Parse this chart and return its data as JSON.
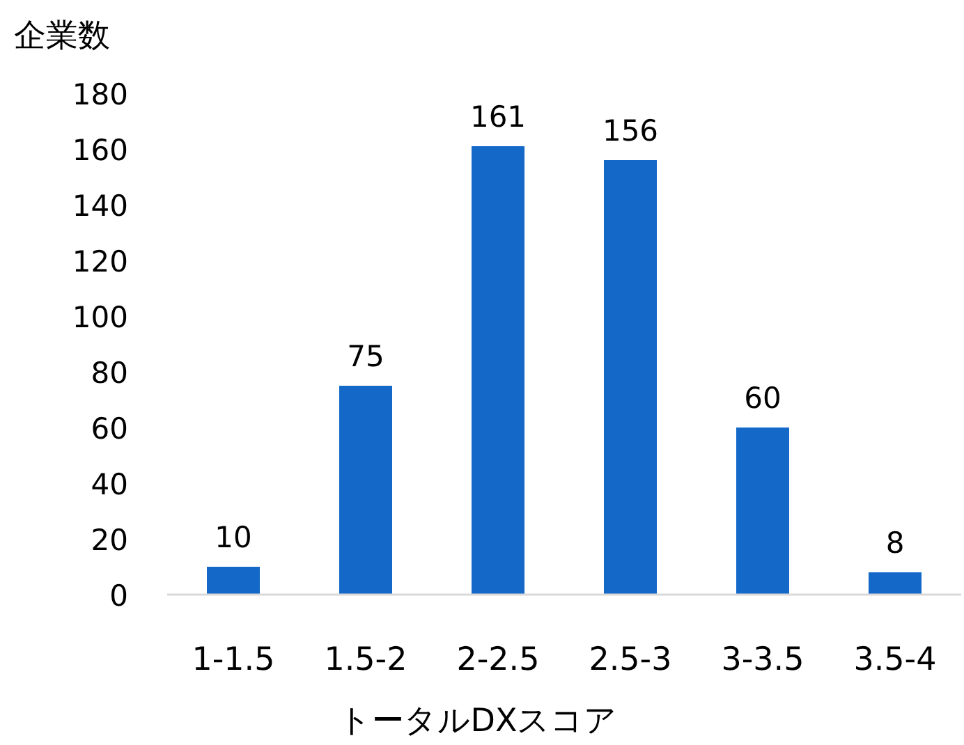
{
  "chart_data": {
    "type": "bar",
    "ylabel": "企業数",
    "xlabel": "トータルDXスコア",
    "categories": [
      "1-1.5",
      "1.5-2",
      "2-2.5",
      "2.5-3",
      "3-3.5",
      "3.5-4"
    ],
    "values": [
      10,
      75,
      161,
      156,
      60,
      8
    ],
    "color": "#1468c8",
    "ylim": [
      0,
      180
    ],
    "yticks": [
      0,
      20,
      40,
      60,
      80,
      100,
      120,
      140,
      160,
      180
    ],
    "data_labels": true
  }
}
